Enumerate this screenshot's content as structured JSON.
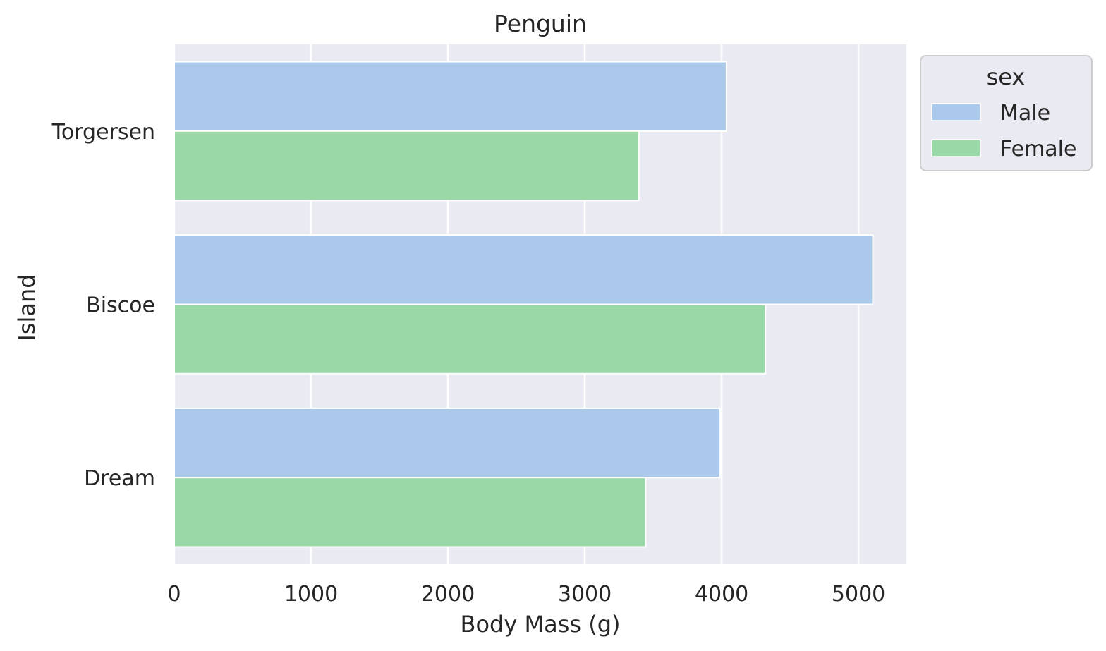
{
  "chart_data": {
    "type": "bar",
    "orientation": "horizontal",
    "title": "Penguin",
    "xlabel": "Body Mass (g)",
    "ylabel": "Island",
    "categories": [
      "Torgersen",
      "Biscoe",
      "Dream"
    ],
    "series": [
      {
        "name": "Male",
        "values": [
          4035,
          5105,
          3990
        ],
        "color": "#abc9ea"
      },
      {
        "name": "Female",
        "values": [
          3395,
          4320,
          3445
        ],
        "color": "#98d9a7"
      }
    ],
    "xlim": [
      0,
      5350
    ],
    "xticks": [
      0,
      1000,
      2000,
      3000,
      4000,
      5000
    ],
    "grid": true,
    "legend": {
      "title": "sex",
      "placement": "outside-top-right"
    },
    "background_color": "#eaeaf2",
    "grid_color": "#ffffff"
  }
}
